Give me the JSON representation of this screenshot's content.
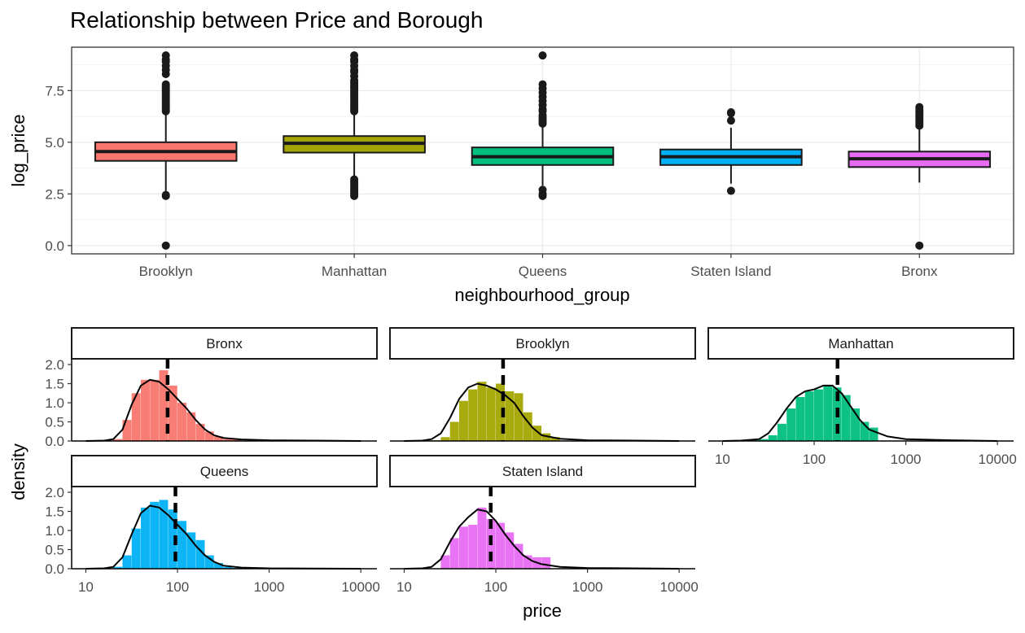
{
  "colors": {
    "Brooklyn": "#F8766D",
    "Manhattan": "#A3A500",
    "Queens": "#00BF7D",
    "Staten Island": "#00B0F6",
    "Bronx": "#E76BF3",
    "Bronx_hist": "#F8766D",
    "Brooklyn_hist": "#A3A500",
    "Manhattan_hist": "#00BF7D",
    "Queens_hist": "#00B0F6",
    "Staten Island_hist": "#E76BF3"
  },
  "chart_data": [
    {
      "type": "box",
      "title": "Relationship between Price and Borough",
      "xlabel": "neighbourhood_group",
      "ylabel": "log_price",
      "ylim": [
        -0.4,
        9.6
      ],
      "yticks": [
        0.0,
        2.5,
        5.0,
        7.5
      ],
      "ytick_labels": [
        "0.0",
        "2.5",
        "5.0",
        "7.5"
      ],
      "categories": [
        "Brooklyn",
        "Manhattan",
        "Queens",
        "Staten Island",
        "Bronx"
      ],
      "grid": true,
      "boxes": [
        {
          "name": "Brooklyn",
          "q1": 4.1,
          "median": 4.55,
          "q3": 5.0,
          "whisker_low": 2.55,
          "whisker_high": 6.45,
          "outliers": [
            0.0,
            2.4,
            2.45,
            6.5,
            6.6,
            6.7,
            6.8,
            6.9,
            7.0,
            7.1,
            7.2,
            7.3,
            7.4,
            7.5,
            7.6,
            7.7,
            7.8,
            8.3,
            8.5,
            8.7,
            8.9,
            9.0,
            9.2
          ]
        },
        {
          "name": "Manhattan",
          "q1": 4.5,
          "median": 4.95,
          "q3": 5.3,
          "whisker_low": 3.3,
          "whisker_high": 6.45,
          "outliers": [
            2.4,
            2.5,
            2.6,
            2.7,
            2.8,
            2.9,
            3.0,
            3.1,
            3.2,
            6.5,
            6.6,
            6.7,
            6.8,
            6.9,
            7.0,
            7.1,
            7.2,
            7.3,
            7.4,
            7.5,
            7.6,
            7.7,
            7.8,
            7.9,
            8.0,
            8.2,
            8.4,
            8.5,
            8.7,
            8.9,
            9.0,
            9.2
          ]
        },
        {
          "name": "Queens",
          "q1": 3.9,
          "median": 4.3,
          "q3": 4.75,
          "whisker_low": 2.9,
          "whisker_high": 6.0,
          "outliers": [
            2.4,
            2.5,
            2.7,
            5.9,
            6.0,
            6.1,
            6.2,
            6.3,
            6.5,
            6.6,
            6.8,
            7.0,
            7.2,
            7.4,
            7.6,
            7.8,
            9.2
          ]
        },
        {
          "name": "Staten Island",
          "q1": 3.9,
          "median": 4.3,
          "q3": 4.65,
          "whisker_low": 3.0,
          "whisker_high": 5.7,
          "outliers": [
            2.65,
            6.05,
            6.4,
            6.45
          ]
        },
        {
          "name": "Bronx",
          "q1": 3.8,
          "median": 4.2,
          "q3": 4.55,
          "whisker_low": 3.05,
          "whisker_high": 5.7,
          "outliers": [
            0.0,
            5.8,
            5.9,
            6.0,
            6.1,
            6.2,
            6.3,
            6.4,
            6.5,
            6.6,
            6.7
          ]
        }
      ]
    },
    {
      "type": "histogram",
      "xlabel": "price",
      "ylabel": "density",
      "xscale": "log10",
      "xlim": [
        7,
        15000
      ],
      "ylim": [
        0,
        2.15
      ],
      "xticks": [
        10,
        100,
        1000,
        10000
      ],
      "xtick_labels": [
        "10",
        "100",
        "1000",
        "10000"
      ],
      "yticks": [
        0.0,
        0.5,
        1.0,
        1.5,
        2.0
      ],
      "ytick_labels": [
        "0.0",
        "0.5",
        "1.0",
        "1.5",
        "2.0"
      ],
      "bin_log_edges": [
        1.3,
        1.4,
        1.5,
        1.6,
        1.7,
        1.8,
        1.9,
        2.0,
        2.1,
        2.2,
        2.3,
        2.4,
        2.5,
        2.6,
        2.7
      ],
      "panels": [
        {
          "name": "Bronx",
          "mean": 78,
          "hist": [
            0.05,
            0.55,
            1.25,
            1.6,
            1.6,
            1.85,
            1.45,
            1.0,
            0.75,
            0.45,
            0.25,
            0.12,
            0.05,
            0.05
          ],
          "density": [
            [
              1.0,
              0.0
            ],
            [
              1.2,
              0.01
            ],
            [
              1.3,
              0.05
            ],
            [
              1.4,
              0.3
            ],
            [
              1.5,
              0.95
            ],
            [
              1.6,
              1.45
            ],
            [
              1.7,
              1.6
            ],
            [
              1.8,
              1.55
            ],
            [
              1.9,
              1.35
            ],
            [
              2.0,
              1.1
            ],
            [
              2.1,
              0.85
            ],
            [
              2.2,
              0.55
            ],
            [
              2.3,
              0.3
            ],
            [
              2.4,
              0.15
            ],
            [
              2.5,
              0.08
            ],
            [
              2.7,
              0.04
            ],
            [
              3.0,
              0.02
            ],
            [
              3.5,
              0.01
            ],
            [
              4.0,
              0.0
            ]
          ]
        },
        {
          "name": "Brooklyn",
          "mean": 120,
          "hist": [
            0.02,
            0.1,
            0.5,
            1.05,
            1.35,
            1.55,
            1.4,
            1.5,
            1.3,
            1.25,
            0.75,
            0.4,
            0.2,
            0.1,
            0.05
          ],
          "density": [
            [
              1.0,
              0.0
            ],
            [
              1.2,
              0.01
            ],
            [
              1.3,
              0.05
            ],
            [
              1.4,
              0.2
            ],
            [
              1.5,
              0.6
            ],
            [
              1.6,
              1.1
            ],
            [
              1.7,
              1.4
            ],
            [
              1.8,
              1.5
            ],
            [
              1.9,
              1.45
            ],
            [
              2.0,
              1.35
            ],
            [
              2.1,
              1.2
            ],
            [
              2.2,
              1.0
            ],
            [
              2.3,
              0.65
            ],
            [
              2.4,
              0.35
            ],
            [
              2.5,
              0.15
            ],
            [
              2.7,
              0.06
            ],
            [
              3.0,
              0.02
            ],
            [
              3.5,
              0.01
            ],
            [
              4.0,
              0.0
            ]
          ]
        },
        {
          "name": "Manhattan",
          "mean": 180,
          "hist": [
            0.02,
            0.05,
            0.15,
            0.45,
            0.85,
            1.15,
            1.3,
            1.35,
            1.45,
            1.4,
            1.2,
            0.85,
            0.5,
            0.35,
            0.15
          ],
          "density": [
            [
              1.0,
              0.0
            ],
            [
              1.2,
              0.01
            ],
            [
              1.4,
              0.05
            ],
            [
              1.5,
              0.2
            ],
            [
              1.6,
              0.5
            ],
            [
              1.7,
              0.85
            ],
            [
              1.8,
              1.15
            ],
            [
              1.9,
              1.3
            ],
            [
              2.0,
              1.35
            ],
            [
              2.1,
              1.45
            ],
            [
              2.2,
              1.45
            ],
            [
              2.3,
              1.25
            ],
            [
              2.4,
              0.9
            ],
            [
              2.5,
              0.55
            ],
            [
              2.6,
              0.3
            ],
            [
              2.8,
              0.12
            ],
            [
              3.0,
              0.05
            ],
            [
              3.5,
              0.02
            ],
            [
              4.0,
              0.0
            ]
          ]
        },
        {
          "name": "Queens",
          "mean": 95,
          "hist": [
            0.05,
            0.35,
            1.05,
            1.6,
            1.75,
            1.8,
            1.55,
            1.25,
            0.95,
            0.75,
            0.35,
            0.15,
            0.05,
            0.02
          ],
          "density": [
            [
              1.0,
              0.0
            ],
            [
              1.2,
              0.01
            ],
            [
              1.3,
              0.05
            ],
            [
              1.4,
              0.3
            ],
            [
              1.5,
              0.9
            ],
            [
              1.6,
              1.45
            ],
            [
              1.7,
              1.65
            ],
            [
              1.8,
              1.6
            ],
            [
              1.9,
              1.4
            ],
            [
              2.0,
              1.15
            ],
            [
              2.1,
              0.9
            ],
            [
              2.2,
              0.6
            ],
            [
              2.3,
              0.35
            ],
            [
              2.4,
              0.18
            ],
            [
              2.5,
              0.08
            ],
            [
              2.7,
              0.03
            ],
            [
              3.0,
              0.01
            ],
            [
              4.0,
              0.0
            ]
          ]
        },
        {
          "name": "Staten Island",
          "mean": 88,
          "hist": [
            0.0,
            0.35,
            0.8,
            1.1,
            1.15,
            1.6,
            1.3,
            1.2,
            0.95,
            0.65,
            0.35,
            0.3,
            0.3,
            0.0
          ],
          "density": [
            [
              1.0,
              0.0
            ],
            [
              1.2,
              0.01
            ],
            [
              1.3,
              0.05
            ],
            [
              1.4,
              0.25
            ],
            [
              1.5,
              0.7
            ],
            [
              1.6,
              1.1
            ],
            [
              1.7,
              1.35
            ],
            [
              1.8,
              1.55
            ],
            [
              1.9,
              1.5
            ],
            [
              2.0,
              1.25
            ],
            [
              2.1,
              0.9
            ],
            [
              2.2,
              0.6
            ],
            [
              2.3,
              0.35
            ],
            [
              2.4,
              0.2
            ],
            [
              2.5,
              0.12
            ],
            [
              2.7,
              0.05
            ],
            [
              3.0,
              0.02
            ],
            [
              4.0,
              0.0
            ]
          ]
        }
      ]
    }
  ]
}
